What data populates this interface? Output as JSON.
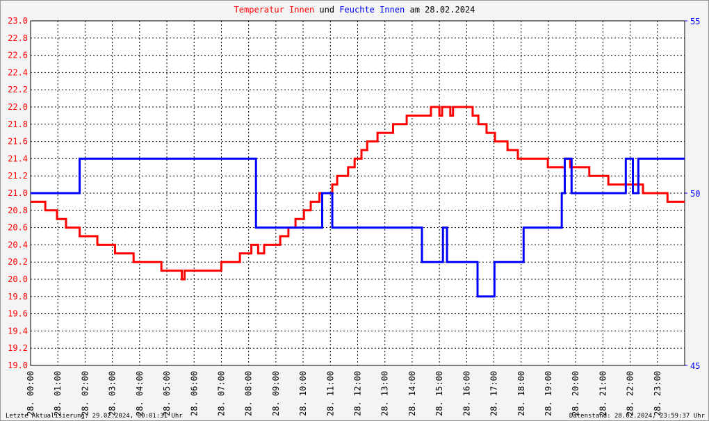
{
  "chart_data": {
    "type": "line",
    "title_connector": "und",
    "title_suffix": "am 28.02.2024",
    "footer_left": "Letzte Aktualisierung: 29.02.2024, 00:01:31 Uhr",
    "footer_right": "Datenstand: 28.02.2024, 23:59:37 Uhr",
    "grid": true,
    "xlim": [
      0,
      24
    ],
    "xticks": [
      {
        "value": 0,
        "label": "28. 00:00"
      },
      {
        "value": 1,
        "label": "28. 01:00"
      },
      {
        "value": 2,
        "label": "28. 02:00"
      },
      {
        "value": 3,
        "label": "28. 03:00"
      },
      {
        "value": 4,
        "label": "28. 04:00"
      },
      {
        "value": 5,
        "label": "28. 05:00"
      },
      {
        "value": 6,
        "label": "28. 06:00"
      },
      {
        "value": 7,
        "label": "28. 07:00"
      },
      {
        "value": 8,
        "label": "28. 08:00"
      },
      {
        "value": 9,
        "label": "28. 09:00"
      },
      {
        "value": 10,
        "label": "28. 10:00"
      },
      {
        "value": 11,
        "label": "28. 11:00"
      },
      {
        "value": 12,
        "label": "28. 12:00"
      },
      {
        "value": 13,
        "label": "28. 13:00"
      },
      {
        "value": 14,
        "label": "28. 14:00"
      },
      {
        "value": 15,
        "label": "28. 15:00"
      },
      {
        "value": 16,
        "label": "28. 16:00"
      },
      {
        "value": 17,
        "label": "28. 17:00"
      },
      {
        "value": 18,
        "label": "28. 18:00"
      },
      {
        "value": 19,
        "label": "28. 19:00"
      },
      {
        "value": 20,
        "label": "28. 20:00"
      },
      {
        "value": 21,
        "label": "28. 21:00"
      },
      {
        "value": 22,
        "label": "28. 22:00"
      },
      {
        "value": 23,
        "label": "28. 23:00"
      }
    ],
    "ylim": [
      19,
      23
    ],
    "yticks": [
      {
        "value": 19,
        "label": "19.0"
      },
      {
        "value": 19.2,
        "label": "19.2"
      },
      {
        "value": 19.4,
        "label": "19.4"
      },
      {
        "value": 19.6,
        "label": "19.6"
      },
      {
        "value": 19.8,
        "label": "19.8"
      },
      {
        "value": 20,
        "label": "20.0"
      },
      {
        "value": 20.2,
        "label": "20.2"
      },
      {
        "value": 20.4,
        "label": "20.4"
      },
      {
        "value": 20.6,
        "label": "20.6"
      },
      {
        "value": 20.8,
        "label": "20.8"
      },
      {
        "value": 21,
        "label": "21.0"
      },
      {
        "value": 21.2,
        "label": "21.2"
      },
      {
        "value": 21.4,
        "label": "21.4"
      },
      {
        "value": 21.6,
        "label": "21.6"
      },
      {
        "value": 21.8,
        "label": "21.8"
      },
      {
        "value": 22,
        "label": "22.0"
      },
      {
        "value": 22.2,
        "label": "22.2"
      },
      {
        "value": 22.4,
        "label": "22.4"
      },
      {
        "value": 22.6,
        "label": "22.6"
      },
      {
        "value": 22.8,
        "label": "22.8"
      },
      {
        "value": 23,
        "label": "23.0"
      }
    ],
    "y2lim": [
      45,
      55
    ],
    "y2ticks": [
      45,
      50,
      55
    ],
    "series": [
      {
        "name": "Temperatur Innen",
        "color": "#ff0000",
        "axis": "y",
        "x": [
          0,
          0.54,
          0.54,
          0.97,
          0.97,
          1.3,
          1.3,
          1.8,
          1.8,
          2.45,
          2.45,
          3.1,
          3.1,
          3.78,
          3.78,
          4.8,
          4.8,
          5.55,
          5.55,
          5.65,
          5.65,
          7.0,
          7.0,
          7.68,
          7.68,
          8.1,
          8.1,
          8.35,
          8.35,
          8.57,
          8.57,
          9.16,
          9.16,
          9.46,
          9.46,
          9.72,
          9.72,
          10.03,
          10.03,
          10.28,
          10.28,
          10.6,
          10.6,
          11.07,
          11.07,
          11.25,
          11.25,
          11.65,
          11.65,
          11.89,
          11.89,
          12.14,
          12.14,
          12.35,
          12.35,
          12.73,
          12.73,
          13.3,
          13.3,
          13.8,
          13.8,
          14.69,
          14.69,
          15.0,
          15.0,
          15.1,
          15.1,
          15.4,
          15.4,
          15.5,
          15.5,
          16.22,
          16.22,
          16.43,
          16.43,
          16.73,
          16.73,
          17.04,
          17.04,
          17.5,
          17.5,
          17.88,
          17.88,
          18.98,
          18.98,
          19.6,
          19.6,
          19.8,
          19.8,
          20.5,
          20.5,
          21.2,
          21.2,
          22.47,
          22.47,
          23.37,
          23.37,
          24
        ],
        "values": [
          20.9,
          20.9,
          20.8,
          20.8,
          20.7,
          20.7,
          20.6,
          20.6,
          20.5,
          20.5,
          20.4,
          20.4,
          20.3,
          20.3,
          20.2,
          20.2,
          20.1,
          20.1,
          20.0,
          20.0,
          20.1,
          20.1,
          20.2,
          20.2,
          20.3,
          20.3,
          20.4,
          20.4,
          20.3,
          20.3,
          20.4,
          20.4,
          20.5,
          20.5,
          20.6,
          20.6,
          20.7,
          20.7,
          20.8,
          20.8,
          20.9,
          20.9,
          21.0,
          21.0,
          21.1,
          21.1,
          21.2,
          21.2,
          21.3,
          21.3,
          21.4,
          21.4,
          21.5,
          21.5,
          21.6,
          21.6,
          21.7,
          21.7,
          21.8,
          21.8,
          21.9,
          21.9,
          22.0,
          22.0,
          21.9,
          21.9,
          22.0,
          22.0,
          21.9,
          21.9,
          22.0,
          22.0,
          21.9,
          21.9,
          21.8,
          21.8,
          21.7,
          21.7,
          21.6,
          21.6,
          21.5,
          21.5,
          21.4,
          21.4,
          21.3,
          21.3,
          21.4,
          21.4,
          21.3,
          21.3,
          21.2,
          21.2,
          21.1,
          21.1,
          21.0,
          21.0,
          20.9,
          20.9
        ]
      },
      {
        "name": "Feuchte Innen",
        "color": "#0000ff",
        "axis": "y2",
        "x": [
          0,
          1.8,
          1.8,
          8.27,
          8.27,
          10.7,
          10.7,
          11.07,
          11.07,
          14.36,
          14.36,
          15.13,
          15.13,
          15.28,
          15.28,
          16.4,
          16.4,
          17.02,
          17.02,
          18.09,
          18.09,
          19.49,
          19.49,
          19.6,
          19.6,
          19.85,
          19.85,
          21.84,
          21.84,
          22.1,
          22.1,
          22.3,
          22.3,
          22.6,
          22.6,
          24
        ],
        "values": [
          50,
          50,
          51,
          51,
          49,
          49,
          50,
          50,
          49,
          49,
          48,
          48,
          49,
          49,
          48,
          48,
          47,
          47,
          48,
          48,
          49,
          49,
          50,
          50,
          51,
          51,
          50,
          50,
          51,
          51,
          50,
          50,
          51,
          51,
          51,
          51
        ]
      }
    ]
  }
}
